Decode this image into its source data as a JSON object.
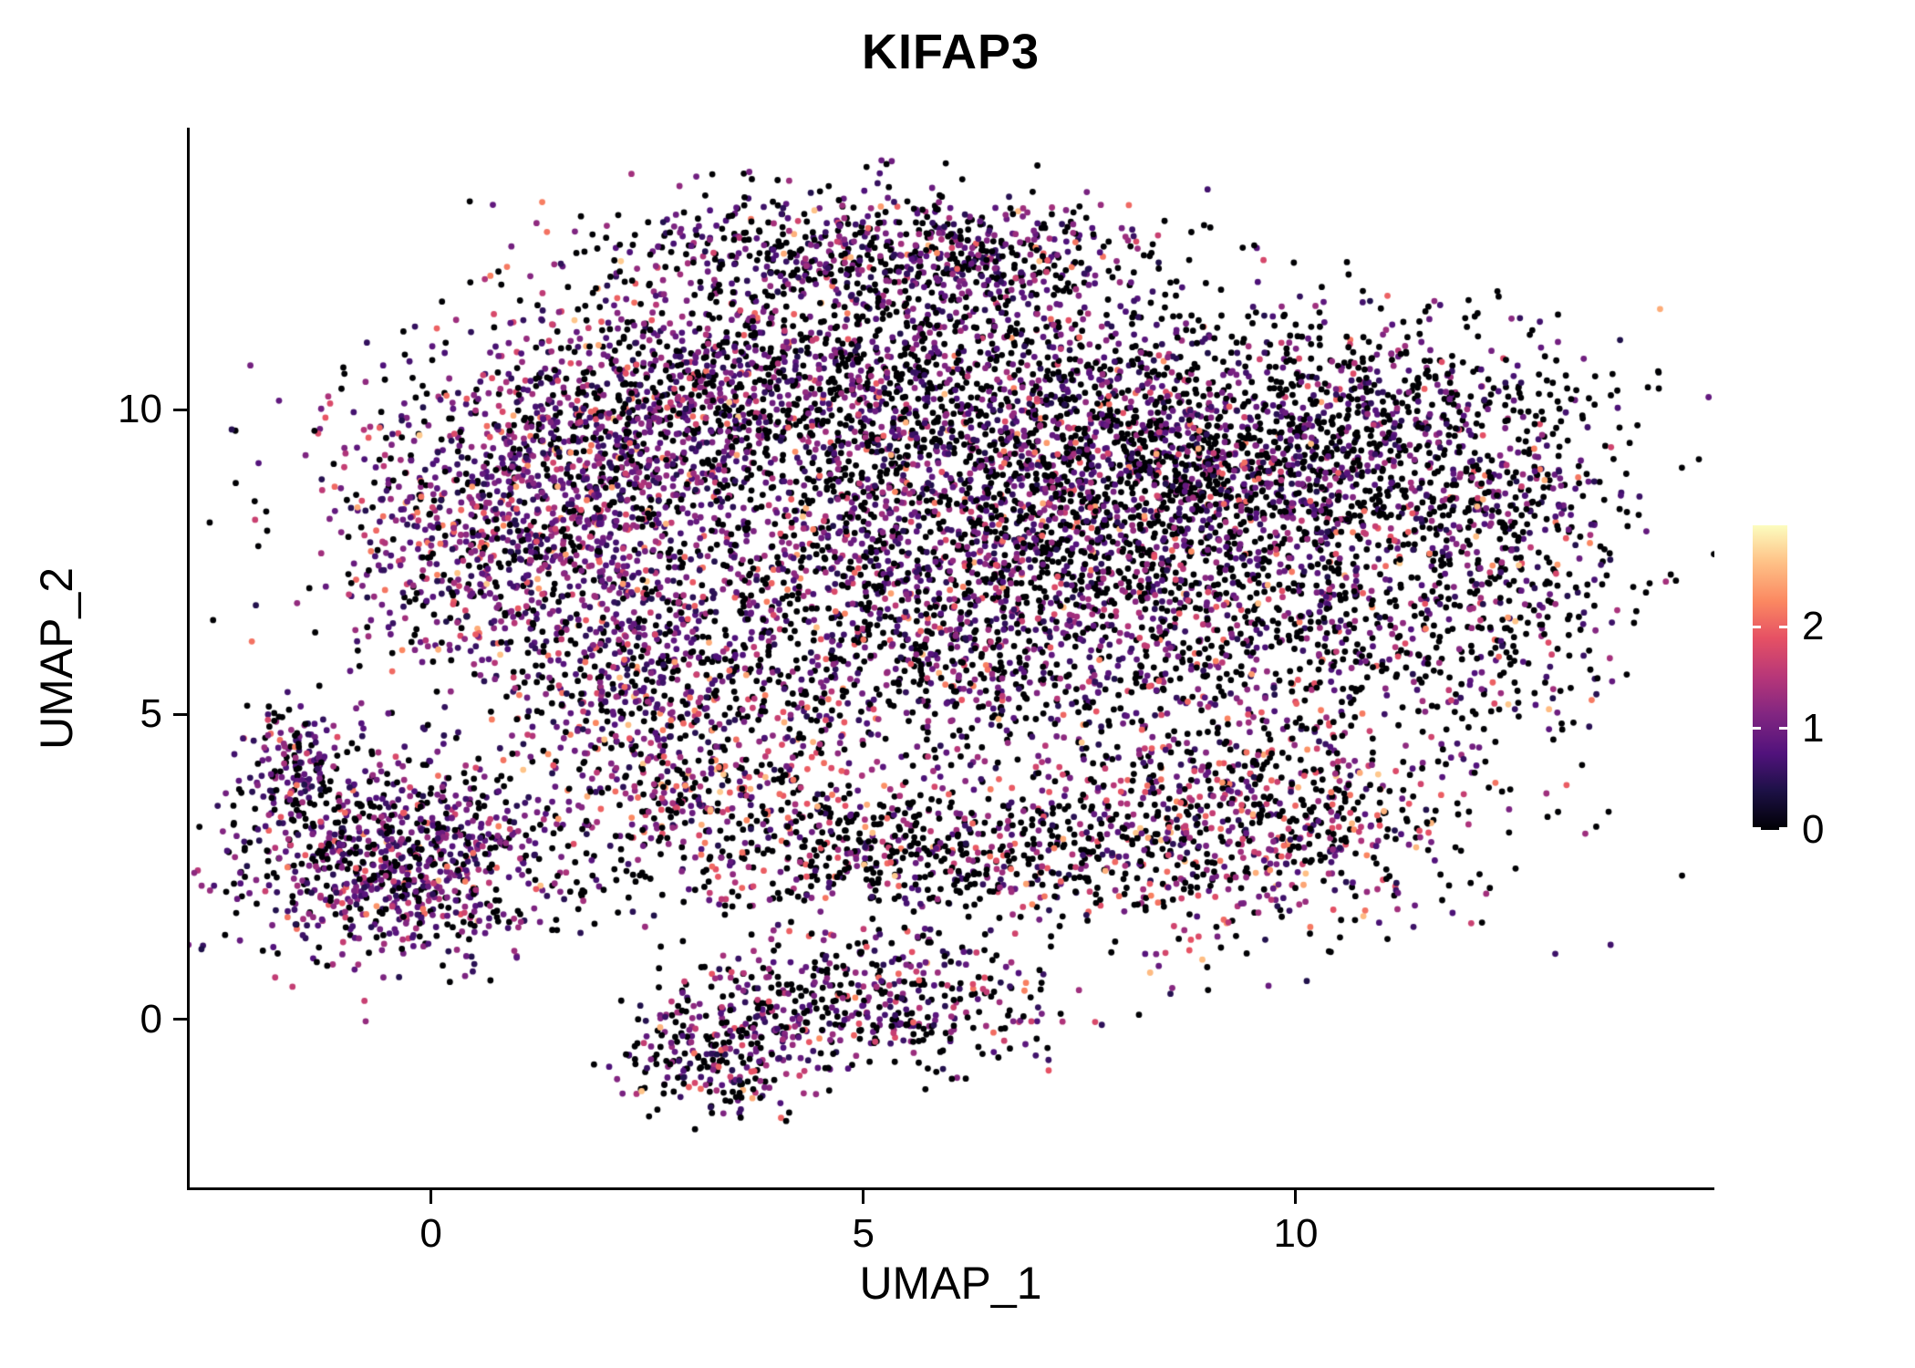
{
  "chart_data": {
    "type": "scatter",
    "title": "KIFAP3",
    "xlabel": "UMAP_1",
    "ylabel": "UMAP_2",
    "x_ticks": [
      0,
      5,
      10
    ],
    "y_ticks": [
      0,
      5,
      10
    ],
    "x_range": [
      -2.79,
      14.84
    ],
    "y_range": [
      -2.76,
      14.63
    ],
    "grid": false,
    "point_radius": 3.4,
    "seed": 42,
    "colormap": {
      "name": "magma",
      "domain": [
        0,
        3
      ],
      "stops": [
        [
          0.0,
          "#000004"
        ],
        [
          0.13,
          "#1D1147"
        ],
        [
          0.25,
          "#51127C"
        ],
        [
          0.38,
          "#822681"
        ],
        [
          0.5,
          "#B63679"
        ],
        [
          0.63,
          "#E65164"
        ],
        [
          0.75,
          "#FB8861"
        ],
        [
          0.88,
          "#FEC287"
        ],
        [
          1.0,
          "#FCFDBF"
        ]
      ]
    },
    "legend": {
      "ticks": [
        0,
        1,
        2
      ]
    },
    "expression_bins": {
      "zero": 0,
      "low": [
        0.4,
        1.4
      ],
      "mid": [
        1.4,
        2.2
      ],
      "high": [
        2.2,
        2.7
      ]
    },
    "clusters": [
      {
        "name": "main-left-lobe",
        "cx": 1.3,
        "cy": 8.2,
        "sx": 1.25,
        "sy": 1.35,
        "n": 1500,
        "expr": [
          0.27,
          0.58,
          0.13,
          0.02
        ]
      },
      {
        "name": "main-left-upper",
        "cx": 2.8,
        "cy": 10.3,
        "sx": 1.0,
        "sy": 0.9,
        "n": 650,
        "expr": [
          0.38,
          0.52,
          0.09,
          0.01
        ]
      },
      {
        "name": "top-ridge",
        "cx": 4.8,
        "cy": 12.6,
        "sx": 1.5,
        "sy": 0.5,
        "n": 520,
        "expr": [
          0.45,
          0.48,
          0.06,
          0.01
        ]
      },
      {
        "name": "top-ridge-right",
        "cx": 6.6,
        "cy": 12.4,
        "sx": 0.9,
        "sy": 0.5,
        "n": 240,
        "expr": [
          0.5,
          0.44,
          0.05,
          0.01
        ]
      },
      {
        "name": "mid-upper",
        "cx": 5.3,
        "cy": 10.6,
        "sx": 1.35,
        "sy": 1.0,
        "n": 850,
        "expr": [
          0.5,
          0.42,
          0.07,
          0.01
        ]
      },
      {
        "name": "center",
        "cx": 5.5,
        "cy": 7.8,
        "sx": 1.55,
        "sy": 1.4,
        "n": 1250,
        "expr": [
          0.45,
          0.45,
          0.09,
          0.01
        ]
      },
      {
        "name": "right-center",
        "cx": 8.2,
        "cy": 8.8,
        "sx": 1.5,
        "sy": 1.3,
        "n": 1750,
        "expr": [
          0.5,
          0.42,
          0.07,
          0.01
        ]
      },
      {
        "name": "right-upper",
        "cx": 10.8,
        "cy": 9.4,
        "sx": 1.3,
        "sy": 1.15,
        "n": 950,
        "expr": [
          0.58,
          0.36,
          0.05,
          0.01
        ]
      },
      {
        "name": "far-right-edge",
        "cx": 12.4,
        "cy": 7.6,
        "sx": 0.8,
        "sy": 1.4,
        "n": 430,
        "expr": [
          0.55,
          0.37,
          0.07,
          0.01
        ]
      },
      {
        "name": "right-mid-sparse",
        "cx": 10.3,
        "cy": 6.2,
        "sx": 1.3,
        "sy": 0.9,
        "n": 350,
        "expr": [
          0.6,
          0.3,
          0.09,
          0.01
        ]
      },
      {
        "name": "lower-center-band",
        "cx": 6.2,
        "cy": 5.8,
        "sx": 2.0,
        "sy": 0.8,
        "n": 650,
        "expr": [
          0.5,
          0.4,
          0.09,
          0.01
        ]
      },
      {
        "name": "right-lower-blob",
        "cx": 9.3,
        "cy": 3.3,
        "sx": 1.5,
        "sy": 1.0,
        "n": 900,
        "expr": [
          0.44,
          0.34,
          0.18,
          0.04
        ]
      },
      {
        "name": "mid-band",
        "cx": 6.0,
        "cy": 2.9,
        "sx": 1.7,
        "sy": 0.6,
        "n": 430,
        "expr": [
          0.55,
          0.3,
          0.13,
          0.02
        ]
      },
      {
        "name": "mid-band-sparse",
        "cx": 4.6,
        "cy": 2.4,
        "sx": 2.3,
        "sy": 0.5,
        "n": 240,
        "expr": [
          0.6,
          0.3,
          0.09,
          0.01
        ]
      },
      {
        "name": "left-arm",
        "cx": 3.2,
        "cy": 4.1,
        "sx": 1.05,
        "sy": 0.75,
        "n": 430,
        "expr": [
          0.34,
          0.39,
          0.21,
          0.06
        ]
      },
      {
        "name": "connector",
        "cx": 2.2,
        "cy": 5.6,
        "sx": 0.8,
        "sy": 0.6,
        "n": 230,
        "expr": [
          0.35,
          0.5,
          0.13,
          0.02
        ]
      },
      {
        "name": "left-island",
        "cx": -0.4,
        "cy": 2.7,
        "sx": 0.95,
        "sy": 0.85,
        "n": 950,
        "expr": [
          0.36,
          0.54,
          0.09,
          0.01
        ]
      },
      {
        "name": "left-island-tip",
        "cx": -1.55,
        "cy": 4.2,
        "sx": 0.28,
        "sy": 0.5,
        "n": 130,
        "expr": [
          0.4,
          0.5,
          0.09,
          0.01
        ]
      },
      {
        "name": "bottom-island",
        "cx": 5.0,
        "cy": 0.3,
        "sx": 1.1,
        "sy": 0.55,
        "n": 470,
        "expr": [
          0.5,
          0.4,
          0.09,
          0.01
        ]
      },
      {
        "name": "bottom-tail",
        "cx": 3.3,
        "cy": -0.6,
        "sx": 0.55,
        "sy": 0.5,
        "n": 250,
        "expr": [
          0.45,
          0.45,
          0.09,
          0.01
        ]
      }
    ]
  }
}
